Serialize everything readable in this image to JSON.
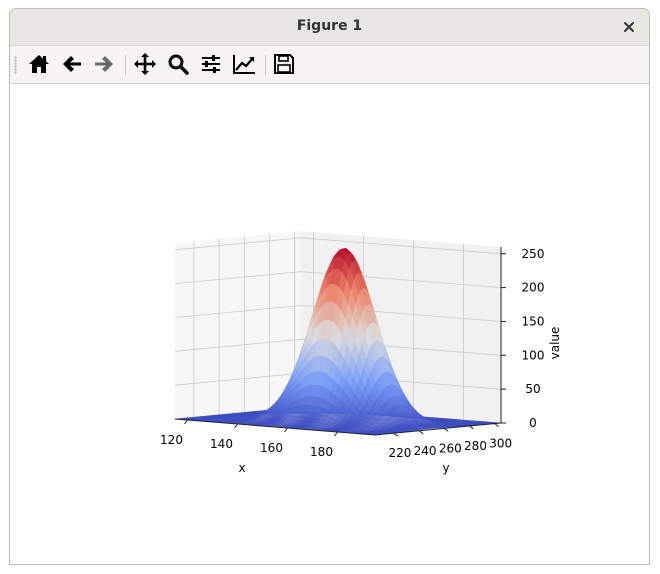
{
  "window": {
    "title": "Figure 1"
  },
  "toolbar": {
    "buttons": [
      {
        "name": "home",
        "icon": "home-icon"
      },
      {
        "name": "back",
        "icon": "arrow-left-icon"
      },
      {
        "name": "forward",
        "icon": "arrow-right-icon"
      },
      {
        "name": "pan",
        "icon": "move-icon"
      },
      {
        "name": "zoom",
        "icon": "magnifier-icon"
      },
      {
        "name": "configure-subplots",
        "icon": "sliders-icon"
      },
      {
        "name": "edit-axes",
        "icon": "line-chart-icon"
      },
      {
        "name": "save",
        "icon": "floppy-disk-icon"
      }
    ]
  },
  "chart_data": {
    "type": "surface",
    "colormap": "coolwarm",
    "xlabel": "x",
    "ylabel": "y",
    "zlabel": "value",
    "x_ticks": [
      "120",
      "140",
      "160",
      "180"
    ],
    "y_ticks": [
      "220",
      "240",
      "260",
      "280",
      "300"
    ],
    "z_ticks": [
      "0",
      "50",
      "100",
      "150",
      "200",
      "250"
    ],
    "xlim": [
      115,
      195
    ],
    "ylim": [
      205,
      305
    ],
    "zlim": [
      0,
      260
    ],
    "peak": {
      "x": 160,
      "y": 250,
      "value": 258
    },
    "grid": true
  }
}
